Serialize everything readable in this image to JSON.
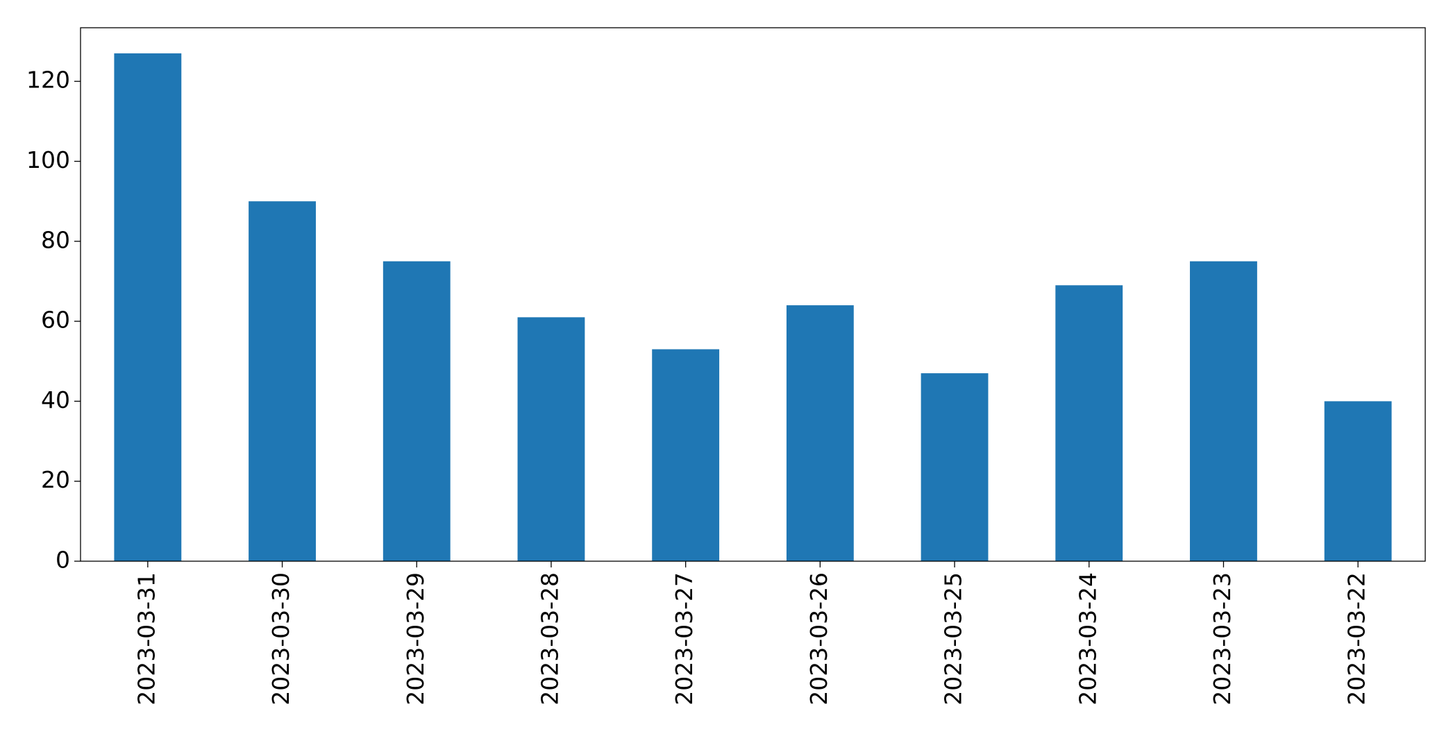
{
  "chart_data": {
    "type": "bar",
    "categories": [
      "2023-03-31",
      "2023-03-30",
      "2023-03-29",
      "2023-03-28",
      "2023-03-27",
      "2023-03-26",
      "2023-03-25",
      "2023-03-24",
      "2023-03-23",
      "2023-03-22"
    ],
    "values": [
      127,
      90,
      75,
      61,
      53,
      64,
      47,
      69,
      75,
      40
    ],
    "color": "#1f77b4",
    "ylim": [
      0,
      133.4
    ],
    "yticks": [
      0,
      20,
      40,
      60,
      80,
      100,
      120
    ],
    "grid": false
  }
}
